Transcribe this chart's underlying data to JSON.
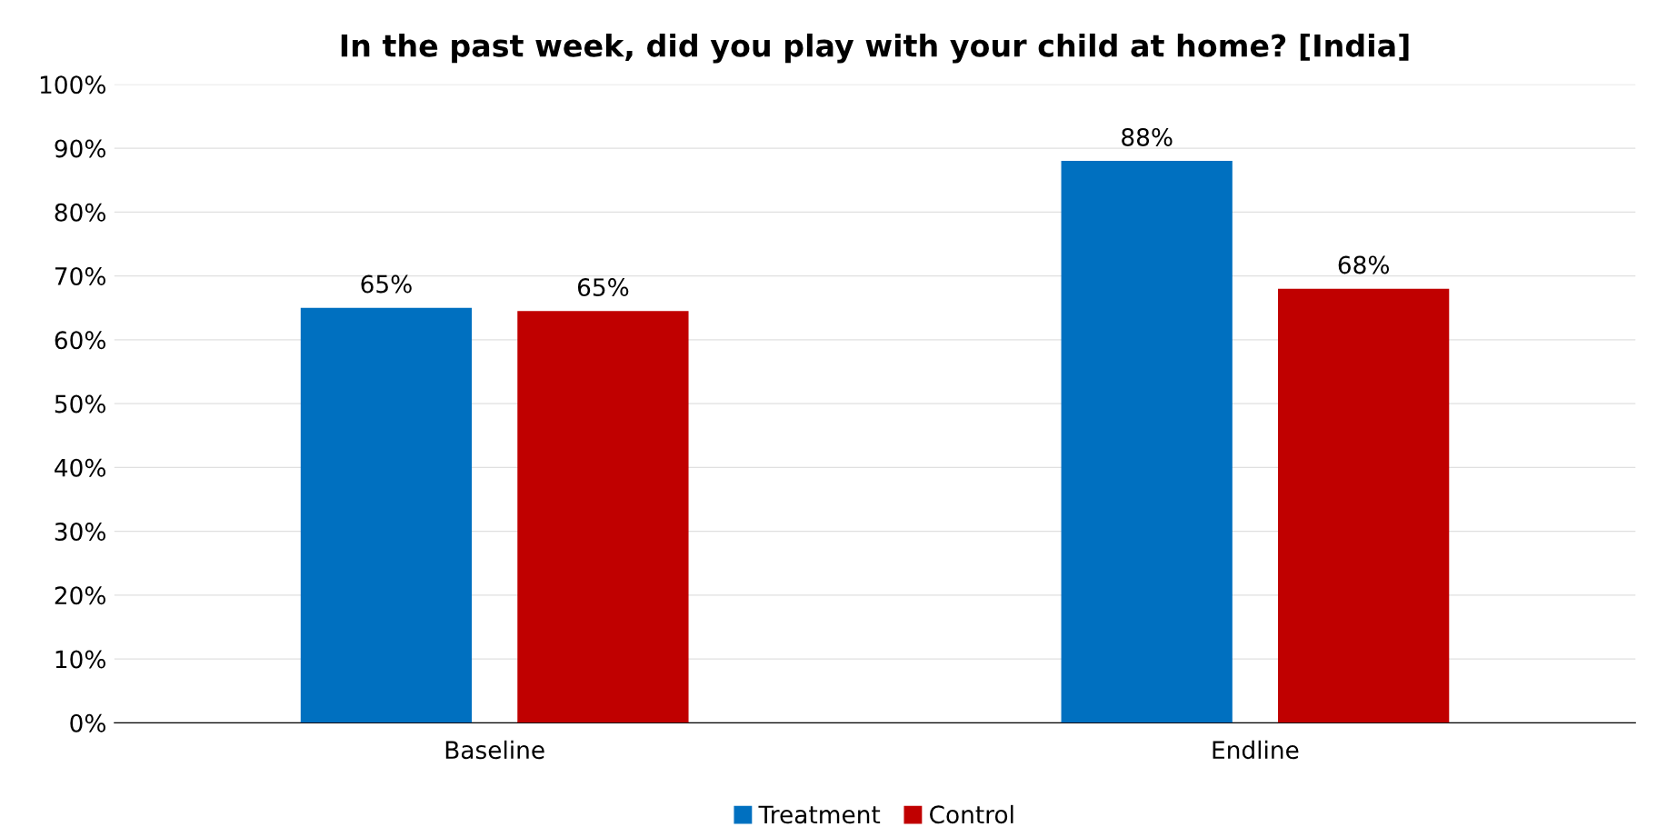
{
  "chart_data": {
    "type": "bar",
    "title": "In the past week, did you play with your child at home? [India]",
    "categories": [
      "Baseline",
      "Endline"
    ],
    "series": [
      {
        "name": "Treatment",
        "color": "#0070c0",
        "values": [
          65,
          88
        ],
        "value_labels": [
          "65%",
          "88%"
        ]
      },
      {
        "name": "Control",
        "color": "#c00000",
        "values": [
          64.5,
          68
        ],
        "value_labels": [
          "65%",
          "68%"
        ]
      }
    ],
    "ylim": [
      0,
      100
    ],
    "yticks": [
      {
        "value": 0,
        "label": "0%"
      },
      {
        "value": 10,
        "label": "10%"
      },
      {
        "value": 20,
        "label": "20%"
      },
      {
        "value": 30,
        "label": "30%"
      },
      {
        "value": 40,
        "label": "40%"
      },
      {
        "value": 50,
        "label": "50%"
      },
      {
        "value": 60,
        "label": "60%"
      },
      {
        "value": 70,
        "label": "70%"
      },
      {
        "value": 80,
        "label": "80%"
      },
      {
        "value": 90,
        "label": "90%"
      },
      {
        "value": 100,
        "label": "100%"
      }
    ],
    "grid": "y",
    "legend": "bottom"
  }
}
